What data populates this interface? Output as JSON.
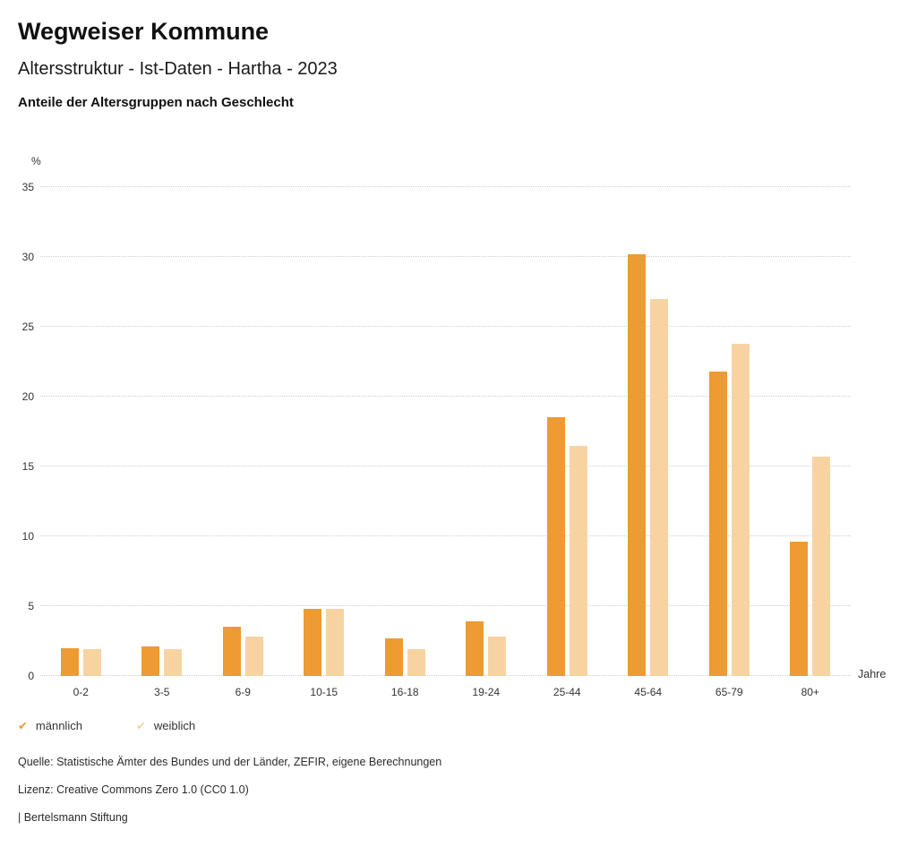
{
  "header": {
    "title": "Wegweiser Kommune",
    "subtitle": "Altersstruktur - Ist-Daten - Hartha - 2023",
    "chart_heading": "Anteile der Altersgruppen nach Geschlecht"
  },
  "chart_data": {
    "type": "bar",
    "title": "Anteile der Altersgruppen nach Geschlecht",
    "categories": [
      "0-2",
      "3-5",
      "6-9",
      "10-15",
      "16-18",
      "19-24",
      "25-44",
      "45-64",
      "65-79",
      "80+"
    ],
    "series": [
      {
        "name": "männlich",
        "color": "#ED9B33",
        "values": [
          2.0,
          2.1,
          3.5,
          4.8,
          2.7,
          3.9,
          18.5,
          30.2,
          21.8,
          9.6
        ]
      },
      {
        "name": "weiblich",
        "color": "#F8D3A2",
        "values": [
          1.9,
          1.9,
          2.8,
          4.8,
          1.9,
          2.8,
          16.5,
          27.0,
          23.8,
          15.7
        ]
      }
    ],
    "ylabel": "%",
    "xlabel": "Jahre",
    "ylim": [
      0,
      35
    ],
    "ytick_step": 5,
    "grid": "dotted horizontal",
    "legend_position": "bottom-left"
  },
  "legend": {
    "items": [
      {
        "label": "männlich",
        "color": "#ED9B33",
        "icon": "check-icon",
        "glyph": "✔"
      },
      {
        "label": "weiblich",
        "color": "#F8D3A2",
        "icon": "check-icon",
        "glyph": "✔"
      }
    ]
  },
  "footer": {
    "source": "Quelle: Statistische Ämter des Bundes und der Länder, ZEFIR, eigene Berechnungen",
    "license": "Lizenz: Creative Commons Zero 1.0 (CC0 1.0)",
    "attribution": "| Bertelsmann Stiftung"
  }
}
